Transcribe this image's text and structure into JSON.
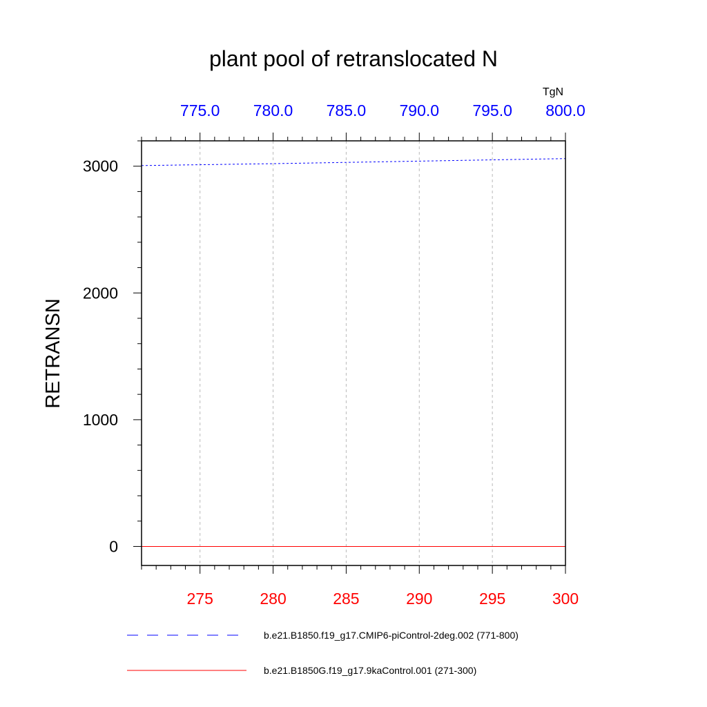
{
  "chart_data": {
    "type": "line",
    "title": "plant pool of retranslocated N",
    "ylabel": "RETRANSN",
    "top_axis_unit": "TgN",
    "ylim": [
      -150,
      3200
    ],
    "yticks": [
      0,
      1000,
      2000,
      3000
    ],
    "ytick_labels": [
      "0",
      "1000",
      "2000",
      "3000"
    ],
    "x_bottom": {
      "range": [
        271,
        300
      ],
      "ticks": [
        275,
        280,
        285,
        290,
        295,
        300
      ],
      "tick_labels": [
        "275",
        "280",
        "285",
        "290",
        "295",
        "300"
      ],
      "color": "#ff0000"
    },
    "x_top": {
      "range": [
        771,
        800
      ],
      "ticks": [
        775,
        780,
        785,
        790,
        795,
        800
      ],
      "tick_labels": [
        "775.0",
        "780.0",
        "785.0",
        "790.0",
        "795.0",
        "800.0"
      ],
      "color": "#0000ff"
    },
    "grid": "vertical dashed at major x ticks",
    "series": [
      {
        "name": "b.e21.B1850.f19_g17.CMIP6-piControl-2deg.002 (771-800)",
        "axis": "top",
        "color": "#0000ff",
        "style": "dashed",
        "x": [
          771,
          780,
          790,
          800
        ],
        "y": [
          3005,
          3020,
          3040,
          3060
        ]
      },
      {
        "name": "b.e21.B1850G.f19_g17.9kaControl.001 (271-300)",
        "axis": "bottom",
        "color": "#ff0000",
        "style": "solid",
        "x": [
          271,
          280,
          290,
          300
        ],
        "y": [
          0,
          0,
          0,
          0
        ]
      }
    ],
    "legend": "bottom"
  }
}
